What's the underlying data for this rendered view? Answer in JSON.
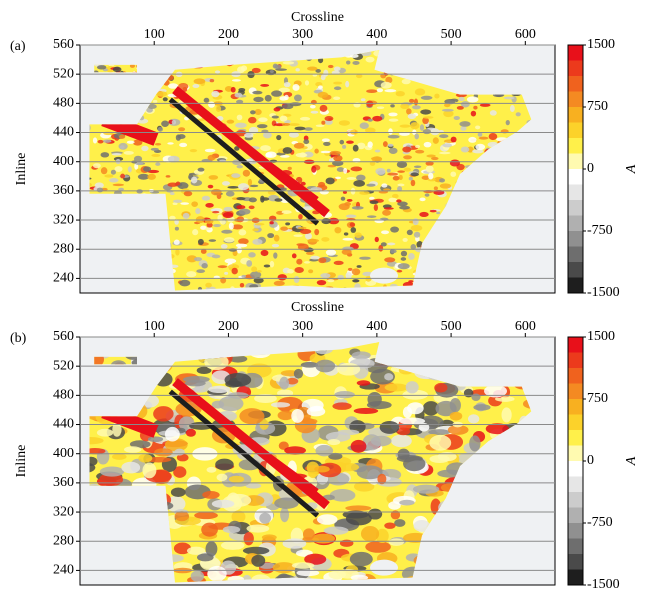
{
  "chart_data": [
    {
      "type": "heatmap",
      "panel_label": "(a)",
      "x_label": "Crossline",
      "y_label": "Inline",
      "xlim": [
        0,
        640
      ],
      "xticks": [
        100,
        200,
        300,
        400,
        500,
        600
      ],
      "ylim": [
        220,
        560
      ],
      "yticks": [
        240,
        280,
        320,
        360,
        400,
        440,
        480,
        520,
        560
      ],
      "grid": true,
      "colorbar": {
        "label": "A",
        "lim": [
          -1500,
          1500
        ],
        "ticks": [
          1500,
          750,
          0,
          -750,
          -1500
        ],
        "colors": [
          "#e8101a",
          "#ec3a1c",
          "#f0621e",
          "#f48a22",
          "#f8b020",
          "#fcd22a",
          "#fff04a",
          "#fffab0",
          "#ffffff",
          "#e6e6e6",
          "#cccccc",
          "#b0b0b0",
          "#909090",
          "#6e6e6e",
          "#4a4a4a",
          "#1e1e1e"
        ]
      }
    },
    {
      "type": "heatmap",
      "panel_label": "(b)",
      "x_label": "Crossline",
      "y_label": "Inline",
      "xlim": [
        0,
        640
      ],
      "xticks": [
        100,
        200,
        300,
        400,
        500,
        600
      ],
      "ylim": [
        220,
        560
      ],
      "yticks": [
        240,
        280,
        320,
        360,
        400,
        440,
        480,
        520,
        560
      ],
      "grid": true,
      "colorbar": {
        "label": "A",
        "lim": [
          -1500,
          1500
        ],
        "ticks": [
          1500,
          750,
          0,
          -750,
          -1500
        ],
        "colors": [
          "#e8101a",
          "#ec3a1c",
          "#f0621e",
          "#f48a22",
          "#f8b020",
          "#fcd22a",
          "#fff04a",
          "#fffab0",
          "#ffffff",
          "#e6e6e6",
          "#cccccc",
          "#b0b0b0",
          "#909090",
          "#6e6e6e",
          "#4a4a4a",
          "#1e1e1e"
        ]
      }
    }
  ]
}
